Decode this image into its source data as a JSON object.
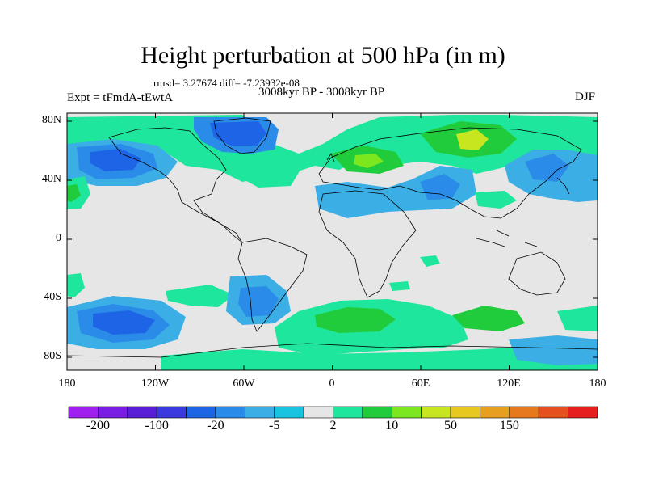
{
  "title": "Height perturbation at 500 hPa (in m)",
  "stats": "rmsd= 3.27674 diff= -7.23932e-08",
  "period": "3008kyr BP - 3008kyr BP",
  "experiment": "Expt = tFmdA-tEwtA",
  "season": "DJF",
  "lat_labels": [
    "80N",
    "40N",
    "0",
    "40S",
    "80S"
  ],
  "lon_labels": [
    "180",
    "120W",
    "60W",
    "0",
    "60E",
    "120E",
    "180"
  ],
  "colorbar": {
    "colors": [
      "#a020f0",
      "#7a1ee6",
      "#5a1ed8",
      "#3a3ae0",
      "#1e64e6",
      "#2a8ce8",
      "#3caee6",
      "#18c4e0",
      "#e6e6e6",
      "#1ee69c",
      "#20cc3c",
      "#7ce61e",
      "#c8e620",
      "#e6c81e",
      "#e6a01e",
      "#e6781e",
      "#e6501e",
      "#e61e1e"
    ],
    "labels": [
      "-200",
      "-100",
      "-20",
      "-5",
      "2",
      "10",
      "50",
      "150"
    ]
  },
  "chart_data": {
    "type": "heatmap",
    "title": "Height perturbation at 500 hPa (in m)",
    "x": [
      "180",
      "120W",
      "60W",
      "0",
      "60E",
      "120E",
      "180"
    ],
    "y": [
      "80N",
      "40N",
      "0",
      "40S",
      "80S"
    ],
    "legend_levels": [
      "-200",
      "-100",
      "-20",
      "-5",
      "2",
      "10",
      "50",
      "150"
    ],
    "features": [
      {
        "lon": -115,
        "lat": 58,
        "value": -20
      },
      {
        "lon": -40,
        "lat": 74,
        "value": -20
      },
      {
        "lon": 35,
        "lat": 30,
        "value": -5
      },
      {
        "lon": 130,
        "lat": 45,
        "value": -5
      },
      {
        "lon": 80,
        "lat": 65,
        "value": 10
      },
      {
        "lon": 20,
        "lat": 55,
        "value": 10
      },
      {
        "lon": -135,
        "lat": -52,
        "value": -20
      },
      {
        "lon": -45,
        "lat": -45,
        "value": -20
      },
      {
        "lon": 20,
        "lat": -55,
        "value": 10
      },
      {
        "lon": 80,
        "lat": -70,
        "value": 5
      }
    ]
  }
}
